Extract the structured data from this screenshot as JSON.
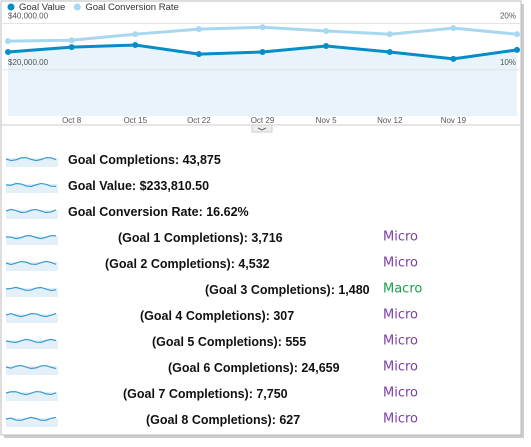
{
  "chart_data": {
    "type": "line",
    "categories": [
      null,
      "Oct 8",
      "Oct 15",
      "Oct 22",
      "Oct 29",
      "Nov 5",
      "Nov 12",
      "Nov 19",
      null
    ],
    "series": [
      {
        "name": "Goal Value",
        "color": "#058dc7",
        "values": [
          27700,
          29800,
          30700,
          26800,
          27700,
          30300,
          27700,
          24700,
          28600
        ]
      },
      {
        "name": "Goal Conversion Rate",
        "color": "#a8d8f0",
        "axis": "y2",
        "values": [
          16.2,
          16.4,
          17.7,
          18.8,
          19.2,
          18.4,
          17.7,
          19,
          17.7
        ]
      }
    ],
    "ylim": [
      0,
      45000
    ],
    "yticks": [
      {
        "value": 20000,
        "label": "$20,000.00"
      },
      {
        "value": 40000,
        "label": "$40,000.00"
      }
    ],
    "y2lim": [
      0,
      22.5
    ],
    "y2ticks": [
      {
        "value": 10,
        "label": "10%"
      },
      {
        "value": 20,
        "label": "20%"
      }
    ],
    "area_color": "#e8f3fa",
    "grid": true
  },
  "metrics": [
    {
      "label": "Goal Completions:",
      "value": "43,875"
    },
    {
      "label": "Goal Value:",
      "value": "$233,810.50"
    },
    {
      "label": "Goal Conversion Rate:",
      "value": "16.62%"
    },
    {
      "label": "(Goal 1 Completions):",
      "value": "3,716",
      "tag": "Micro",
      "tag_color": "#7a3ea8"
    },
    {
      "label": "(Goal 2 Completions):",
      "value": "4,532",
      "tag": "Micro",
      "tag_color": "#7a3ea8"
    },
    {
      "label": "(Goal 3 Completions):",
      "value": "1,480",
      "tag": "Macro",
      "tag_color": "#19a04a"
    },
    {
      "label": "(Goal 4 Completions):",
      "value": "307",
      "tag": "Micro",
      "tag_color": "#7a3ea8"
    },
    {
      "label": "(Goal 5 Completions):",
      "value": "555",
      "tag": "Micro",
      "tag_color": "#7a3ea8"
    },
    {
      "label": "(Goal 6 Completions):",
      "value": "24,659",
      "tag": "Micro",
      "tag_color": "#7a3ea8"
    },
    {
      "label": "(Goal 7 Completions):",
      "value": "7,750",
      "tag": "Micro",
      "tag_color": "#7a3ea8"
    },
    {
      "label": "(Goal 8 Completions):",
      "value": "627",
      "tag": "Micro",
      "tag_color": "#7a3ea8"
    }
  ]
}
